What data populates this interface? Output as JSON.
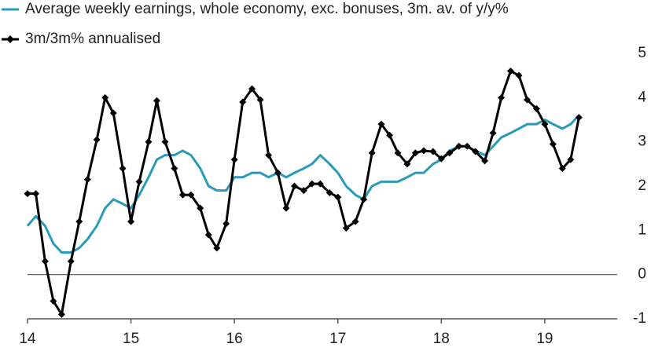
{
  "chart_data": {
    "type": "line",
    "x": [
      14,
      14.08,
      14.17,
      14.25,
      14.33,
      14.42,
      14.5,
      14.58,
      14.67,
      14.75,
      14.83,
      14.92,
      15,
      15.08,
      15.17,
      15.25,
      15.33,
      15.42,
      15.5,
      15.58,
      15.67,
      15.75,
      15.83,
      15.92,
      16,
      16.08,
      16.17,
      16.25,
      16.33,
      16.42,
      16.5,
      16.58,
      16.67,
      16.75,
      16.83,
      16.92,
      17,
      17.08,
      17.17,
      17.25,
      17.33,
      17.42,
      17.5,
      17.58,
      17.67,
      17.75,
      17.83,
      17.92,
      18,
      18.08,
      18.17,
      18.25,
      18.33,
      18.42,
      18.5,
      18.58,
      18.67,
      18.75,
      18.83,
      18.92,
      19,
      19.08,
      19.17,
      19.25,
      19.33
    ],
    "series": [
      {
        "name": "Average weekly earnings, whole economy, exc. bonuses, 3m. av. of y/y%",
        "color": "#2a9bb7",
        "marker": false,
        "values": [
          1.1,
          1.32,
          1.1,
          0.7,
          0.5,
          0.5,
          0.6,
          0.8,
          1.1,
          1.5,
          1.7,
          1.6,
          1.5,
          1.8,
          2.2,
          2.6,
          2.7,
          2.7,
          2.8,
          2.7,
          2.4,
          2.0,
          1.9,
          1.9,
          2.2,
          2.2,
          2.3,
          2.3,
          2.2,
          2.3,
          2.2,
          2.3,
          2.4,
          2.5,
          2.7,
          2.5,
          2.3,
          2.0,
          1.8,
          1.7,
          2.0,
          2.1,
          2.1,
          2.1,
          2.2,
          2.3,
          2.3,
          2.5,
          2.6,
          2.8,
          2.9,
          2.9,
          2.8,
          2.7,
          2.9,
          3.1,
          3.2,
          3.3,
          3.4,
          3.4,
          3.5,
          3.4,
          3.3,
          3.4,
          3.6
        ]
      },
      {
        "name": "3m/3m% annualised",
        "color": "#000000",
        "marker": true,
        "values": [
          1.83,
          1.83,
          0.3,
          -0.6,
          -0.9,
          0.3,
          1.2,
          2.15,
          3.05,
          4.0,
          3.65,
          2.4,
          1.2,
          2.1,
          3.0,
          3.93,
          3.0,
          2.4,
          1.8,
          1.8,
          1.5,
          0.9,
          0.6,
          1.15,
          2.6,
          3.9,
          4.2,
          3.95,
          2.7,
          2.3,
          1.5,
          2.0,
          1.9,
          2.05,
          2.05,
          1.85,
          1.75,
          1.05,
          1.2,
          1.7,
          2.75,
          3.4,
          3.15,
          2.75,
          2.5,
          2.75,
          2.8,
          2.78,
          2.62,
          2.75,
          2.9,
          2.9,
          2.78,
          2.57,
          3.2,
          4.0,
          4.6,
          4.5,
          3.95,
          3.75,
          3.4,
          2.95,
          2.4,
          2.6,
          3.55
        ]
      }
    ],
    "xlim": [
      14,
      19.7
    ],
    "xticks": [
      14,
      15,
      16,
      17,
      18,
      19
    ],
    "ylim": [
      -1,
      5
    ],
    "yticks": [
      -1,
      0,
      1,
      2,
      3,
      4,
      5
    ],
    "y_axis_side": "right"
  }
}
